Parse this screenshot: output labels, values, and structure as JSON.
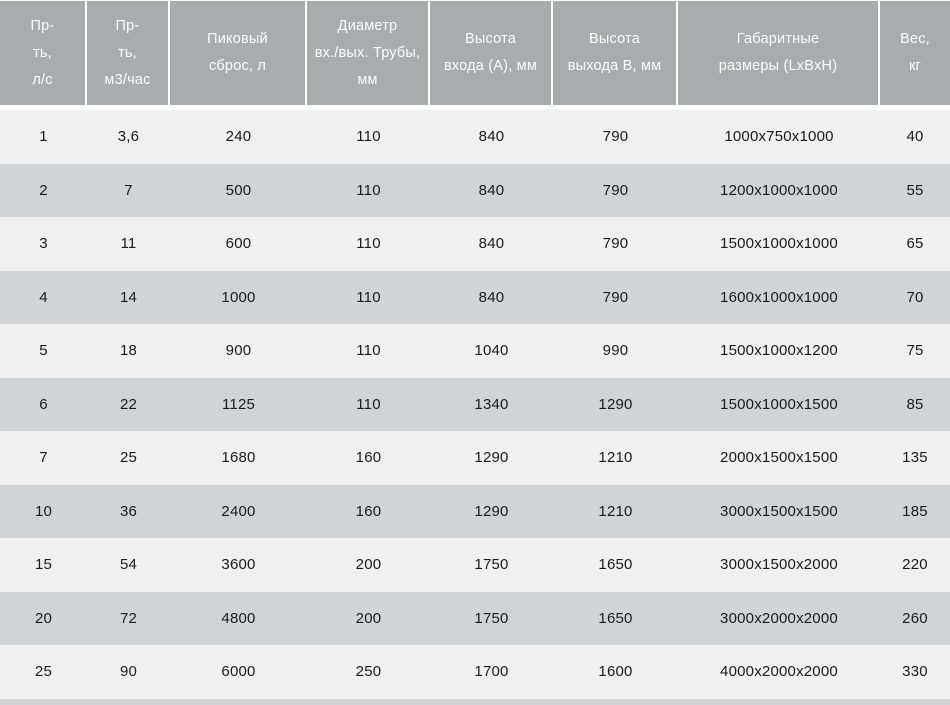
{
  "table": {
    "columns": [
      "Пр-\nть,\nл/с",
      "Пр-\nть,\nм3/час",
      "Пиковый\nсброс, л",
      "Диаметр\nвх./вых. Трубы,\nмм",
      "Высота\nвхода (А), мм",
      "Высота\nвыхода В, мм",
      "Габаритные\nразмеры (LxBxH)",
      "Вес,\nкг"
    ],
    "rows": [
      [
        "1",
        "3,6",
        "240",
        "110",
        "840",
        "790",
        "1000x750x1000",
        "40"
      ],
      [
        "2",
        "7",
        "500",
        "110",
        "840",
        "790",
        "1200x1000x1000",
        "55"
      ],
      [
        "3",
        "11",
        "600",
        "110",
        "840",
        "790",
        "1500x1000x1000",
        "65"
      ],
      [
        "4",
        "14",
        "1000",
        "110",
        "840",
        "790",
        "1600x1000x1000",
        "70"
      ],
      [
        "5",
        "18",
        "900",
        "110",
        "1040",
        "990",
        "1500x1000x1200",
        "75"
      ],
      [
        "6",
        "22",
        "1125",
        "110",
        "1340",
        "1290",
        "1500x1000x1500",
        "85"
      ],
      [
        "7",
        "25",
        "1680",
        "160",
        "1290",
        "1210",
        "2000x1500x1500",
        "135"
      ],
      [
        "10",
        "36",
        "2400",
        "160",
        "1290",
        "1210",
        "3000x1500x1500",
        "185"
      ],
      [
        "15",
        "54",
        "3600",
        "200",
        "1750",
        "1650",
        "3000x1500x2000",
        "220"
      ],
      [
        "20",
        "72",
        "4800",
        "200",
        "1750",
        "1650",
        "3000x2000x2000",
        "260"
      ],
      [
        "25",
        "90",
        "6000",
        "250",
        "1700",
        "1600",
        "4000x2000x2000",
        "330"
      ]
    ]
  },
  "colors": {
    "header_bg": "#a9abad",
    "header_text": "#fdfdfd",
    "row_light": "#f0f0f1",
    "row_dark": "#d1d3d4",
    "cell_text": "#1a1a1a",
    "separator": "#ffffff"
  }
}
